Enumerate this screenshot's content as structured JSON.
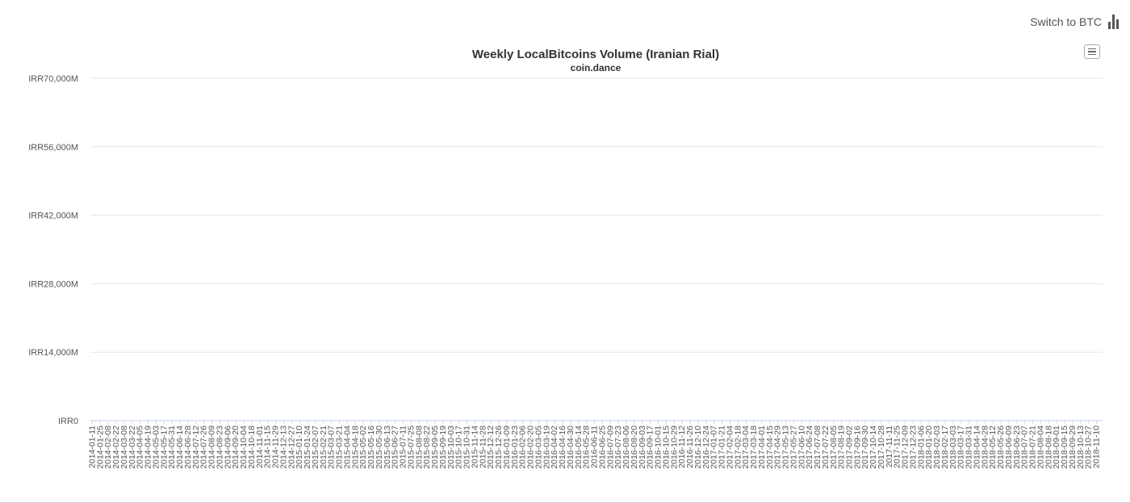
{
  "header": {
    "switch_label": "Switch to BTC",
    "switch_icon": "bar-chart-icon"
  },
  "menu": {
    "icon": "hamburger-menu-icon"
  },
  "chart_data": {
    "type": "bar",
    "title": "Weekly LocalBitcoins Volume (Iranian Rial)",
    "subtitle": "coin.dance",
    "xlabel": "",
    "ylabel": "",
    "bar_color": "#4a86e0",
    "grid": true,
    "legend": "none",
    "ylim": [
      0,
      70000
    ],
    "y_unit": "M IRR",
    "y_ticks": [
      0,
      14000,
      28000,
      42000,
      56000,
      70000
    ],
    "y_tick_labels": [
      "IRR0",
      "IRR14,000M",
      "IRR28,000M",
      "IRR42,000M",
      "IRR56,000M",
      "IRR70,000M"
    ],
    "x_start": "2014-01-11",
    "x_label_every": 2,
    "values": [
      20,
      20,
      20,
      20,
      0,
      0,
      0,
      10,
      10,
      0,
      0,
      20,
      0,
      0,
      20,
      20,
      20,
      20,
      10,
      20,
      20,
      20,
      20,
      20,
      20,
      20,
      0,
      0,
      20,
      20,
      20,
      20,
      20,
      20,
      20,
      20,
      20,
      20,
      20,
      20,
      20,
      20,
      20,
      20,
      20,
      20,
      20,
      20,
      20,
      20,
      20,
      20,
      20,
      20,
      20,
      20,
      20,
      20,
      20,
      20,
      20,
      20,
      20,
      20,
      20,
      20,
      0,
      20,
      20,
      20,
      20,
      20,
      20,
      20,
      20,
      20,
      20,
      20,
      20,
      20,
      20,
      20,
      20,
      20,
      20,
      20,
      20,
      20,
      20,
      20,
      20,
      20,
      20,
      20,
      20,
      20,
      20,
      20,
      20,
      20,
      20,
      20,
      20,
      20,
      20,
      20,
      20,
      20,
      20,
      20,
      20,
      20,
      20,
      20,
      20,
      20,
      20,
      20,
      20,
      20,
      20,
      20,
      20,
      20,
      20,
      20,
      20,
      20,
      20,
      20,
      20,
      20,
      20,
      20,
      20,
      20,
      20,
      20,
      20,
      20,
      20,
      20,
      20,
      20,
      20,
      20,
      20,
      20,
      20,
      20,
      20,
      20,
      20,
      20,
      20,
      20,
      20,
      20,
      20,
      20,
      20,
      20,
      20,
      20,
      20,
      20,
      20,
      20,
      20,
      20,
      20,
      20,
      20,
      20,
      20,
      20,
      20,
      20,
      20,
      20,
      20,
      20,
      20,
      20,
      20,
      20,
      20,
      20,
      20,
      20,
      20,
      20,
      20,
      20,
      20,
      20,
      20,
      20,
      20,
      20,
      20,
      20,
      20,
      20,
      20,
      20,
      20,
      20,
      20,
      20,
      20,
      20,
      20,
      20,
      20,
      20,
      20,
      20,
      20,
      20,
      20,
      20,
      20,
      20,
      20,
      20,
      20,
      20,
      20,
      20,
      20,
      20,
      20,
      20,
      20,
      20,
      20,
      20,
      20,
      20,
      20,
      20,
      20,
      20,
      20,
      20,
      20,
      20,
      20,
      20,
      20,
      20,
      20,
      20
    ]
  }
}
